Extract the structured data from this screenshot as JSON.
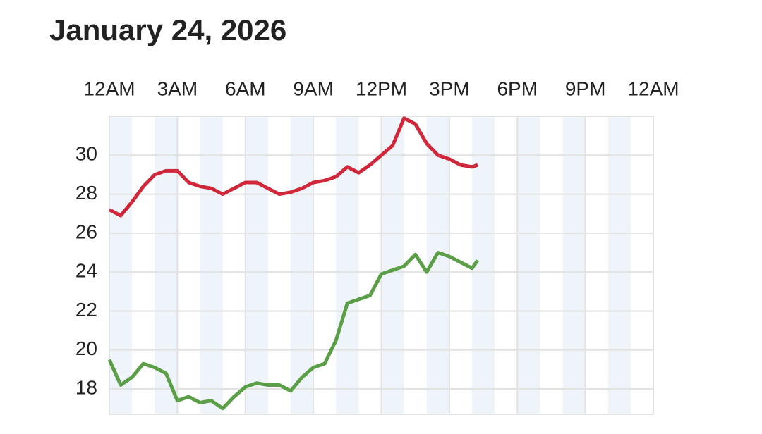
{
  "chart_data": {
    "type": "line",
    "title": "January 24, 2026",
    "x": [
      0,
      0.5,
      1,
      1.5,
      2,
      2.5,
      3,
      3.5,
      4,
      4.5,
      5,
      5.5,
      6,
      6.5,
      7,
      7.5,
      8,
      8.5,
      9,
      9.5,
      10,
      10.5,
      11,
      11.5,
      12,
      12.5,
      13,
      13.5,
      14,
      14.5,
      15,
      15.5,
      16,
      16.25
    ],
    "series": [
      {
        "color": "#d0283a",
        "values": [
          27.2,
          26.9,
          27.6,
          28.4,
          29.0,
          29.2,
          29.2,
          28.6,
          28.4,
          28.3,
          28.0,
          28.3,
          28.6,
          28.6,
          28.3,
          28.0,
          28.1,
          28.3,
          28.6,
          28.7,
          28.9,
          29.4,
          29.1,
          29.5,
          30.0,
          30.5,
          31.9,
          31.6,
          30.6,
          30.0,
          29.8,
          29.5,
          29.4,
          29.5
        ]
      },
      {
        "color": "#5a9e46",
        "values": [
          19.5,
          18.2,
          18.6,
          19.3,
          19.1,
          18.8,
          17.4,
          17.6,
          17.3,
          17.4,
          17.0,
          17.6,
          18.1,
          18.3,
          18.2,
          18.2,
          17.9,
          18.6,
          19.1,
          19.3,
          20.5,
          22.4,
          22.6,
          22.8,
          23.9,
          24.1,
          24.3,
          24.9,
          24.0,
          25.0,
          24.8,
          24.5,
          24.2,
          24.6
        ]
      }
    ],
    "xlim": [
      0,
      24
    ],
    "xticks": [
      {
        "value": 0,
        "label": "12AM"
      },
      {
        "value": 3,
        "label": "3AM"
      },
      {
        "value": 6,
        "label": "6AM"
      },
      {
        "value": 9,
        "label": "9AM"
      },
      {
        "value": 12,
        "label": "12PM"
      },
      {
        "value": 15,
        "label": "3PM"
      },
      {
        "value": 18,
        "label": "6PM"
      },
      {
        "value": 21,
        "label": "9PM"
      },
      {
        "value": 24,
        "label": "12AM"
      }
    ],
    "ylim": [
      16.7,
      32
    ],
    "yticks": [
      18,
      20,
      22,
      24,
      26,
      28,
      30
    ],
    "grid": true
  }
}
